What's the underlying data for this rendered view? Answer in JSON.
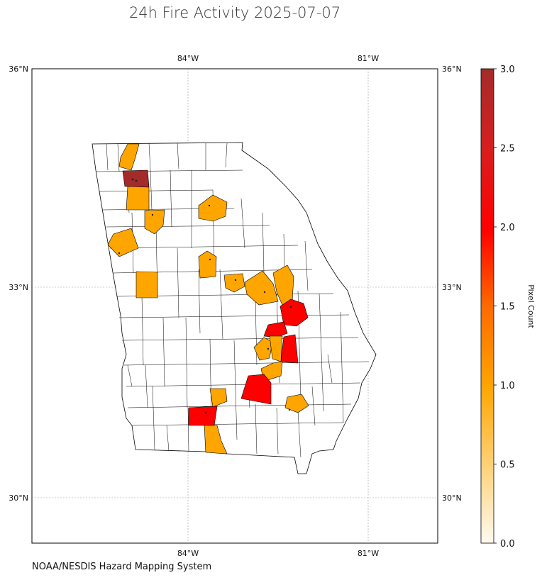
{
  "title": "24h Fire Activity 2025-07-07",
  "source": "NOAA/NESDIS Hazard Mapping System",
  "colorbar": {
    "label": "Pixel Count",
    "ticks": [
      "0.0",
      "0.5",
      "1.0",
      "1.5",
      "2.0",
      "2.5",
      "3.0"
    ],
    "min": 0,
    "max": 3,
    "stops": [
      "#fffaf0",
      "#ffd27a",
      "#ffa500",
      "#ff6a00",
      "#ff0000",
      "#d81e1e",
      "#a52a2a"
    ]
  },
  "axes": {
    "lon_labels": [
      "84°W",
      "81°W"
    ],
    "lat_labels": [
      "36°N",
      "33°N",
      "30°N"
    ]
  },
  "legend_colors": {
    "one": "#ffa500",
    "two": "#ff0000",
    "three": "#a52a2a",
    "none": "#ffffff"
  },
  "chart_data": {
    "type": "choropleth",
    "title": "24h Fire Activity 2025-07-07",
    "region": "Georgia counties",
    "value_label": "Pixel Count",
    "value_range": [
      0,
      3
    ],
    "highlighted_counts": [
      {
        "value": 3,
        "approx_location": "northwest (Bartow area)"
      },
      {
        "value": 1,
        "approx_location": "far northwest"
      },
      {
        "value": 1,
        "approx_location": "northwest"
      },
      {
        "value": 1,
        "approx_location": "northwest"
      },
      {
        "value": 1,
        "approx_location": "west"
      },
      {
        "value": 1,
        "approx_location": "west-central"
      },
      {
        "value": 1,
        "approx_location": "north-central"
      },
      {
        "value": 1,
        "approx_location": "central"
      },
      {
        "value": 1,
        "approx_location": "central"
      },
      {
        "value": 1,
        "approx_location": "east-central"
      },
      {
        "value": 1,
        "approx_location": "east-central"
      },
      {
        "value": 2,
        "approx_location": "east-central"
      },
      {
        "value": 2,
        "approx_location": "east-central"
      },
      {
        "value": 2,
        "approx_location": "east-central"
      },
      {
        "value": 1,
        "approx_location": "east-central"
      },
      {
        "value": 1,
        "approx_location": "east-central"
      },
      {
        "value": 1,
        "approx_location": "south-central"
      },
      {
        "value": 2,
        "approx_location": "south-central"
      },
      {
        "value": 1,
        "approx_location": "south-central"
      },
      {
        "value": 1,
        "approx_location": "southeast"
      },
      {
        "value": 2,
        "approx_location": "southwest"
      },
      {
        "value": 1,
        "approx_location": "south"
      }
    ]
  }
}
